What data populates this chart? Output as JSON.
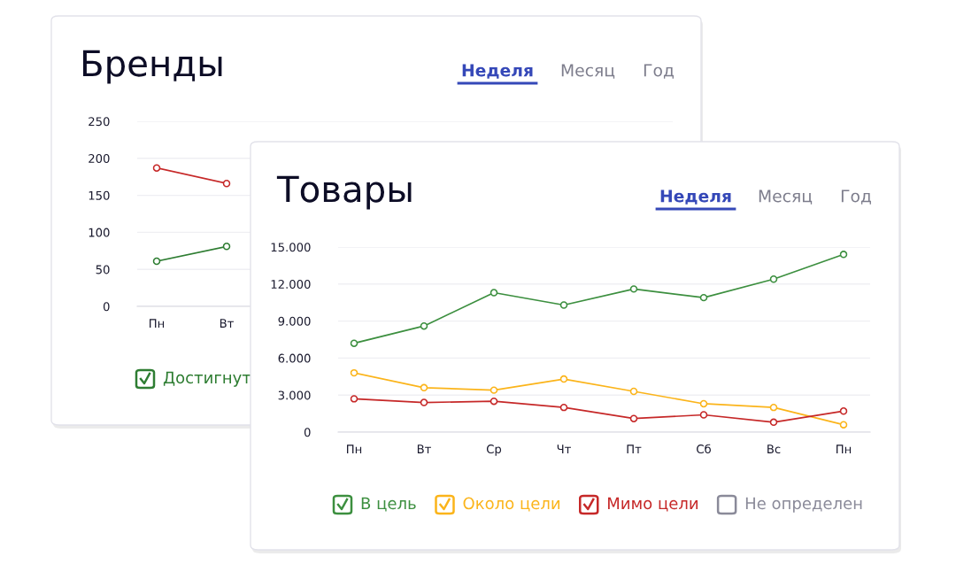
{
  "chart_data": [
    {
      "type": "line",
      "title": "Бренды",
      "annotations": [
        "Неделя",
        "Месяц",
        "Год"
      ],
      "categories": [
        "Пн",
        "Вт",
        null,
        null,
        null,
        null,
        null,
        null
      ],
      "series": [
        {
          "color": "#c62828",
          "values": [
            187,
            166,
            null,
            null,
            null,
            null,
            null,
            null
          ]
        },
        {
          "name": "Достигнут",
          "color": "#2e7d32",
          "values": [
            61,
            81,
            null,
            null,
            null,
            null,
            null,
            null
          ]
        }
      ],
      "ylim": [
        0,
        250
      ],
      "yticks": [
        0,
        50,
        100,
        150,
        200,
        250
      ],
      "grid": "y",
      "legend": "bottom",
      "marker": "circle",
      "line_style": "solid"
    },
    {
      "type": "line",
      "title": "Товары",
      "annotations": [
        "Неделя",
        "Месяц",
        "Год"
      ],
      "categories": [
        "Пн",
        "Вт",
        "Ср",
        "Чт",
        "Пт",
        "Сб",
        "Вс",
        "Пн"
      ],
      "series": [
        {
          "name": "В цель",
          "color": "#3c8f3f",
          "values": [
            7200,
            8600,
            11300,
            10300,
            11600,
            10900,
            12400,
            14400
          ]
        },
        {
          "name": "Около цели",
          "color": "#fbb41a",
          "values": [
            4800,
            3600,
            3400,
            4300,
            3300,
            2300,
            2000,
            600
          ]
        },
        {
          "name": "Мимо цели",
          "color": "#c62828",
          "values": [
            2700,
            2400,
            2500,
            2000,
            1100,
            1400,
            800,
            1700
          ]
        },
        {
          "name": "Не определен",
          "color": "#8a8a99",
          "values": [
            null,
            null,
            null,
            null,
            null,
            null,
            null,
            null
          ]
        }
      ],
      "ylim": [
        0,
        15000
      ],
      "yticks": [
        {
          "value": 0,
          "label": "0"
        },
        {
          "value": 3000,
          "label": "3.000"
        },
        {
          "value": 6000,
          "label": "6.000"
        },
        {
          "value": 9000,
          "label": "9.000"
        },
        {
          "value": 12000,
          "label": "12.000"
        },
        {
          "value": 15000,
          "label": "15.000"
        }
      ],
      "grid": "y",
      "legend": "bottom",
      "marker": "circle",
      "line_style": "solid"
    }
  ]
}
